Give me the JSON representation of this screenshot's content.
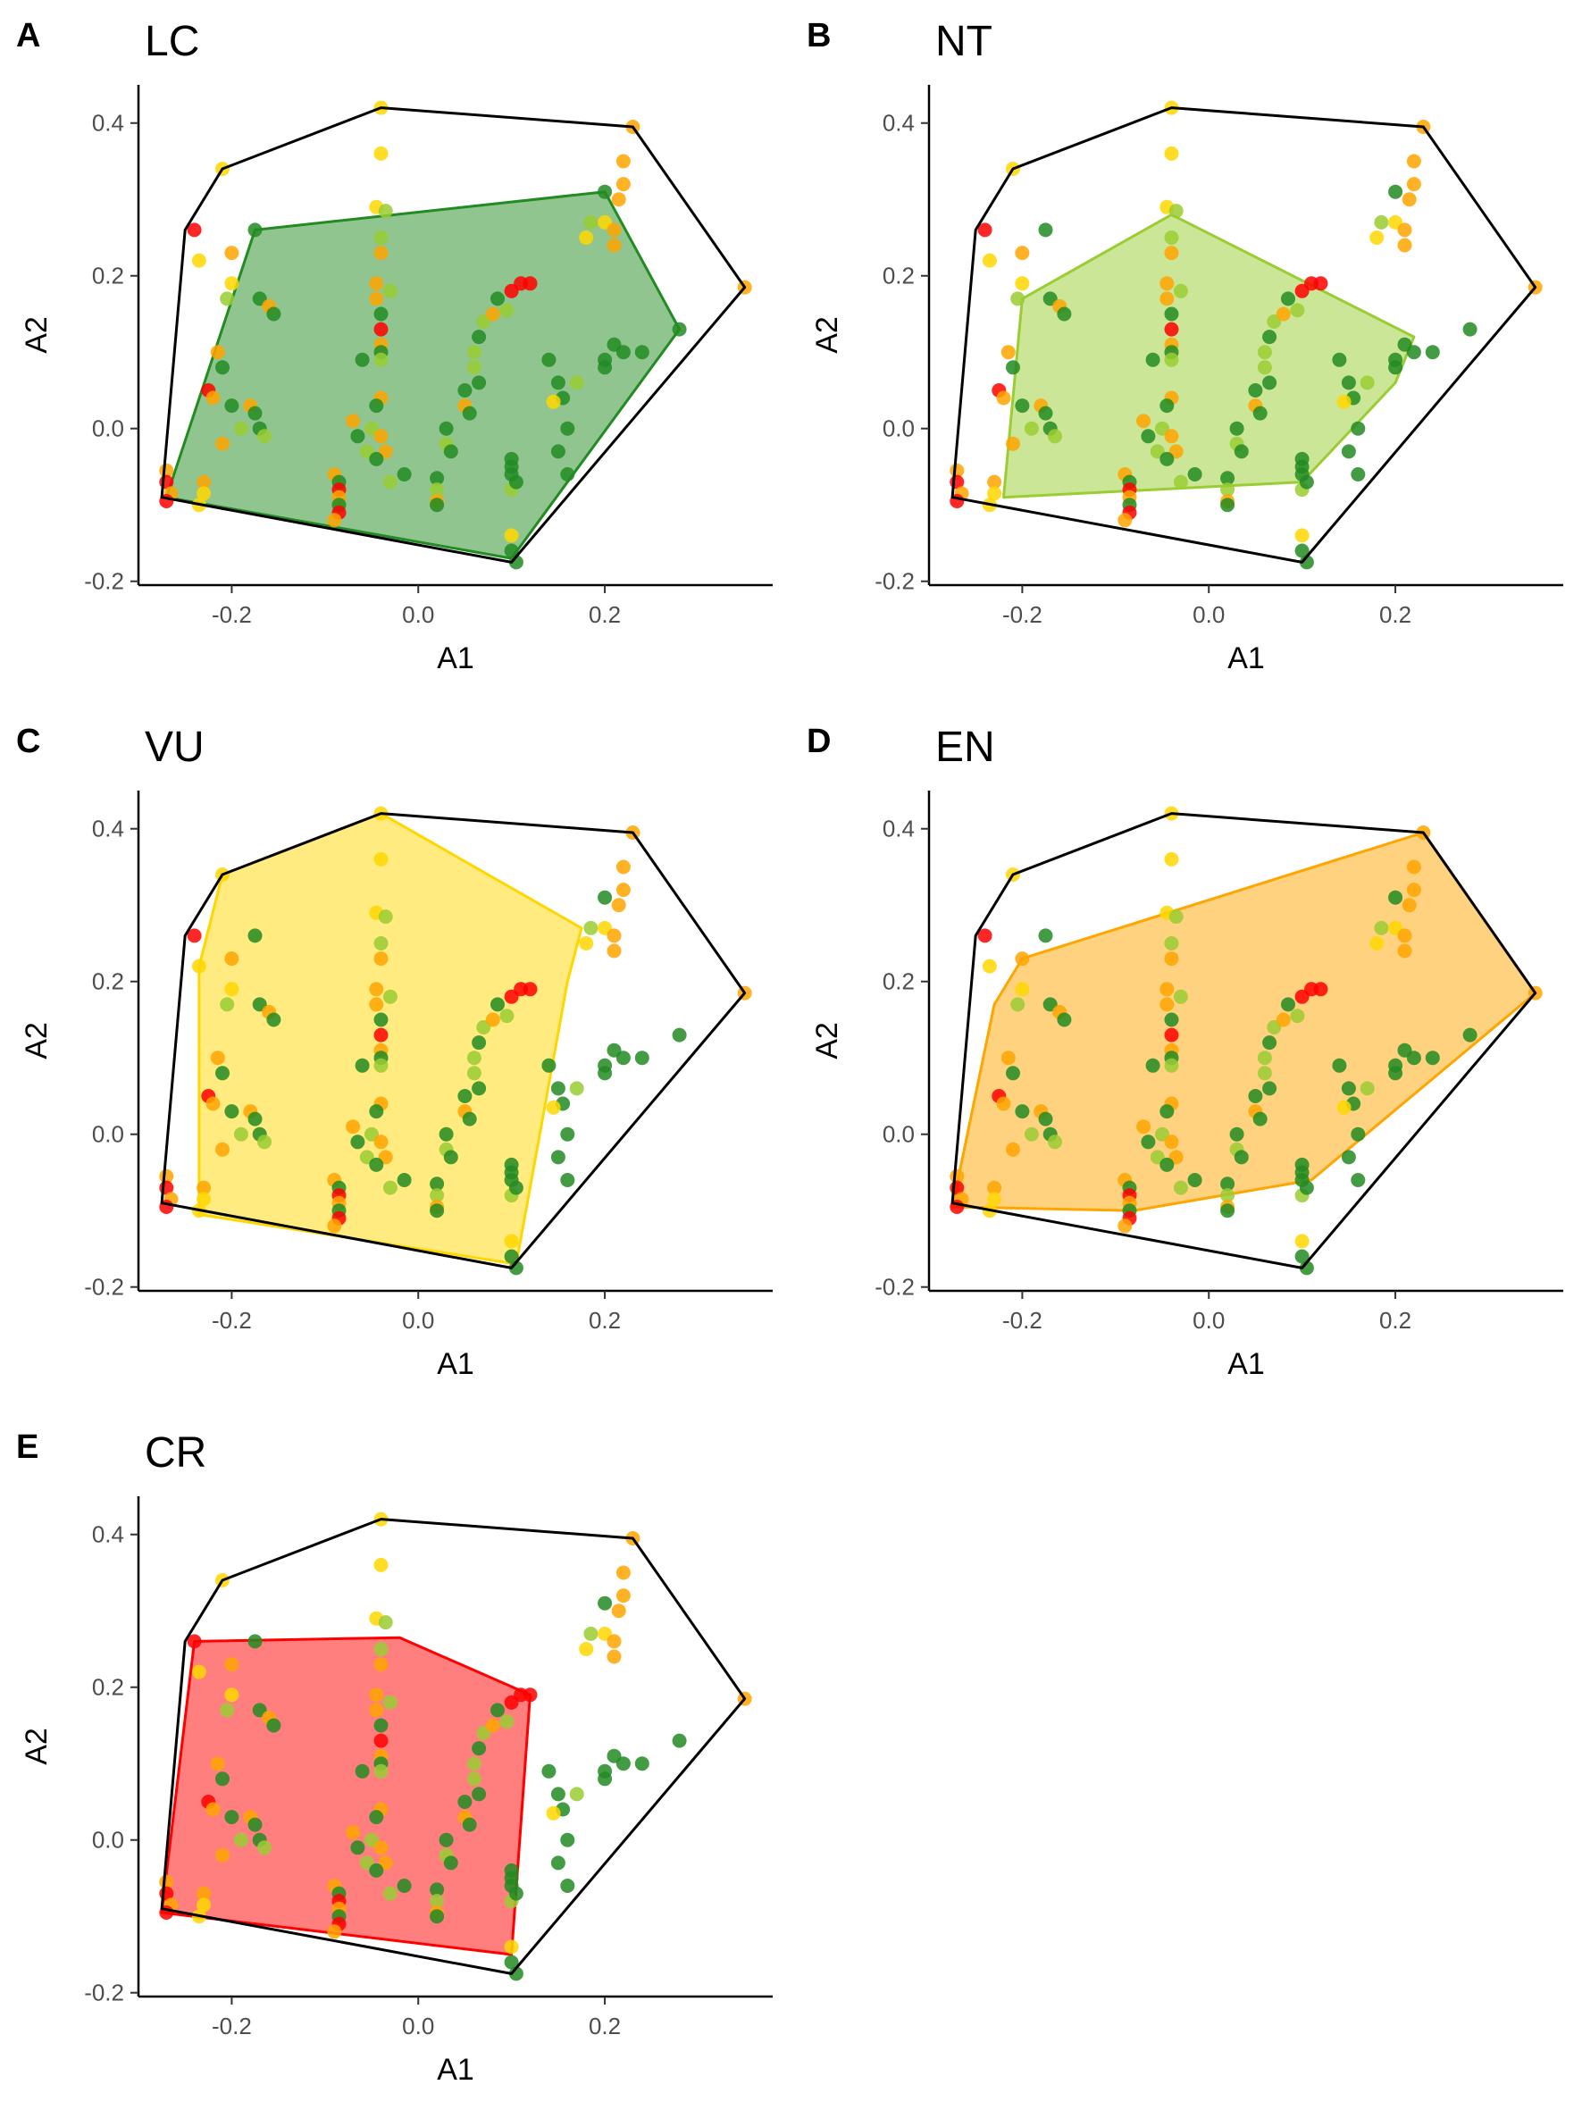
{
  "chart_data": [
    {
      "type": "scatter",
      "panel_letter": "A",
      "title": "LC",
      "xlabel": "A1",
      "ylabel": "A2",
      "xticks": [
        -0.2,
        0.0,
        0.2
      ],
      "xtick_labels": [
        "-0.2",
        "0.0",
        "0.2"
      ],
      "yticks": [
        -0.2,
        0.0,
        0.2,
        0.4
      ],
      "ytick_labels": [
        "-0.2",
        "0.0",
        "0.2",
        "0.4"
      ],
      "xlim": [
        -0.3,
        0.38
      ],
      "ylim": [
        -0.205,
        0.45
      ],
      "highlight_color": "#228B22",
      "highlight_hull": [
        [
          -0.27,
          -0.09
        ],
        [
          -0.175,
          0.26
        ],
        [
          0.2,
          0.31
        ],
        [
          0.28,
          0.13
        ],
        [
          0.1,
          -0.17
        ]
      ]
    },
    {
      "type": "scatter",
      "panel_letter": "B",
      "title": "NT",
      "xlabel": "A1",
      "ylabel": "A2",
      "xticks": [
        -0.2,
        0.0,
        0.2
      ],
      "xtick_labels": [
        "-0.2",
        "0.0",
        "0.2"
      ],
      "yticks": [
        -0.2,
        0.0,
        0.2,
        0.4
      ],
      "ytick_labels": [
        "-0.2",
        "0.0",
        "0.2",
        "0.4"
      ],
      "xlim": [
        -0.3,
        0.38
      ],
      "ylim": [
        -0.205,
        0.45
      ],
      "highlight_color": "#9ACD32",
      "highlight_hull": [
        [
          -0.22,
          -0.09
        ],
        [
          -0.2,
          0.17
        ],
        [
          -0.04,
          0.28
        ],
        [
          0.22,
          0.12
        ],
        [
          0.2,
          0.06
        ],
        [
          0.1,
          -0.07
        ]
      ]
    },
    {
      "type": "scatter",
      "panel_letter": "C",
      "title": "VU",
      "xlabel": "A1",
      "ylabel": "A2",
      "xticks": [
        -0.2,
        0.0,
        0.2
      ],
      "xtick_labels": [
        "-0.2",
        "0.0",
        "0.2"
      ],
      "yticks": [
        -0.2,
        0.0,
        0.2,
        0.4
      ],
      "ytick_labels": [
        "-0.2",
        "0.0",
        "0.2",
        "0.4"
      ],
      "xlim": [
        -0.3,
        0.38
      ],
      "ylim": [
        -0.205,
        0.45
      ],
      "highlight_color": "#FFD700",
      "highlight_hull": [
        [
          -0.235,
          -0.105
        ],
        [
          -0.235,
          0.22
        ],
        [
          -0.21,
          0.34
        ],
        [
          -0.04,
          0.42
        ],
        [
          0.175,
          0.27
        ],
        [
          0.16,
          0.2
        ],
        [
          0.105,
          -0.17
        ]
      ]
    },
    {
      "type": "scatter",
      "panel_letter": "D",
      "title": "EN",
      "xlabel": "A1",
      "ylabel": "A2",
      "xticks": [
        -0.2,
        0.0,
        0.2
      ],
      "xtick_labels": [
        "-0.2",
        "0.0",
        "0.2"
      ],
      "yticks": [
        -0.2,
        0.0,
        0.2,
        0.4
      ],
      "ytick_labels": [
        "-0.2",
        "0.0",
        "0.2",
        "0.4"
      ],
      "xlim": [
        -0.3,
        0.38
      ],
      "ylim": [
        -0.205,
        0.45
      ],
      "highlight_color": "#FFA500",
      "highlight_hull": [
        [
          -0.275,
          -0.095
        ],
        [
          -0.23,
          0.17
        ],
        [
          -0.2,
          0.23
        ],
        [
          0.23,
          0.395
        ],
        [
          0.35,
          0.185
        ],
        [
          0.11,
          -0.06
        ],
        [
          -0.08,
          -0.1
        ]
      ]
    },
    {
      "type": "scatter",
      "panel_letter": "E",
      "title": "CR",
      "xlabel": "A1",
      "ylabel": "A2",
      "xticks": [
        -0.2,
        0.0,
        0.2
      ],
      "xtick_labels": [
        "-0.2",
        "0.0",
        "0.2"
      ],
      "yticks": [
        -0.2,
        0.0,
        0.2,
        0.4
      ],
      "ytick_labels": [
        "-0.2",
        "0.0",
        "0.2",
        "0.4"
      ],
      "xlim": [
        -0.3,
        0.38
      ],
      "ylim": [
        -0.205,
        0.45
      ],
      "highlight_color": "#FF0000",
      "highlight_hull": [
        [
          -0.275,
          -0.095
        ],
        [
          -0.24,
          0.26
        ],
        [
          -0.02,
          0.265
        ],
        [
          0.12,
          0.19
        ],
        [
          0.1,
          -0.15
        ]
      ]
    }
  ],
  "overall_hull": [
    [
      -0.275,
      -0.09
    ],
    [
      -0.25,
      0.26
    ],
    [
      -0.21,
      0.34
    ],
    [
      -0.04,
      0.42
    ],
    [
      0.23,
      0.395
    ],
    [
      0.35,
      0.185
    ],
    [
      0.1,
      -0.175
    ]
  ],
  "category_colors": {
    "LC": "#228B22",
    "NT": "#9ACD32",
    "VU": "#FFD700",
    "EN": "#FFA500",
    "CR": "#FF0000"
  },
  "points": [
    {
      "x": -0.04,
      "y": 0.42,
      "c": "VU"
    },
    {
      "x": -0.04,
      "y": 0.36,
      "c": "VU"
    },
    {
      "x": -0.21,
      "y": 0.34,
      "c": "VU"
    },
    {
      "x": 0.23,
      "y": 0.395,
      "c": "EN"
    },
    {
      "x": 0.35,
      "y": 0.185,
      "c": "EN"
    },
    {
      "x": -0.24,
      "y": 0.26,
      "c": "CR"
    },
    {
      "x": -0.235,
      "y": 0.22,
      "c": "VU"
    },
    {
      "x": -0.2,
      "y": 0.23,
      "c": "EN"
    },
    {
      "x": -0.175,
      "y": 0.26,
      "c": "LC"
    },
    {
      "x": -0.2,
      "y": 0.19,
      "c": "VU"
    },
    {
      "x": -0.205,
      "y": 0.17,
      "c": "NT"
    },
    {
      "x": -0.17,
      "y": 0.17,
      "c": "LC"
    },
    {
      "x": -0.16,
      "y": 0.16,
      "c": "EN"
    },
    {
      "x": -0.155,
      "y": 0.15,
      "c": "LC"
    },
    {
      "x": -0.215,
      "y": 0.1,
      "c": "EN"
    },
    {
      "x": -0.21,
      "y": 0.08,
      "c": "LC"
    },
    {
      "x": -0.225,
      "y": 0.05,
      "c": "CR"
    },
    {
      "x": -0.22,
      "y": 0.04,
      "c": "EN"
    },
    {
      "x": -0.2,
      "y": 0.03,
      "c": "LC"
    },
    {
      "x": -0.19,
      "y": 0.0,
      "c": "NT"
    },
    {
      "x": -0.21,
      "y": -0.02,
      "c": "EN"
    },
    {
      "x": -0.18,
      "y": 0.03,
      "c": "EN"
    },
    {
      "x": -0.175,
      "y": 0.02,
      "c": "LC"
    },
    {
      "x": -0.17,
      "y": 0.0,
      "c": "LC"
    },
    {
      "x": -0.165,
      "y": -0.01,
      "c": "NT"
    },
    {
      "x": -0.27,
      "y": -0.055,
      "c": "EN"
    },
    {
      "x": -0.27,
      "y": -0.07,
      "c": "CR"
    },
    {
      "x": -0.265,
      "y": -0.085,
      "c": "EN"
    },
    {
      "x": -0.27,
      "y": -0.095,
      "c": "CR"
    },
    {
      "x": -0.23,
      "y": -0.07,
      "c": "EN"
    },
    {
      "x": -0.23,
      "y": -0.085,
      "c": "VU"
    },
    {
      "x": -0.235,
      "y": -0.1,
      "c": "VU"
    },
    {
      "x": -0.045,
      "y": 0.29,
      "c": "VU"
    },
    {
      "x": -0.035,
      "y": 0.285,
      "c": "NT"
    },
    {
      "x": -0.04,
      "y": 0.25,
      "c": "NT"
    },
    {
      "x": -0.04,
      "y": 0.23,
      "c": "EN"
    },
    {
      "x": -0.045,
      "y": 0.19,
      "c": "EN"
    },
    {
      "x": -0.03,
      "y": 0.18,
      "c": "NT"
    },
    {
      "x": -0.045,
      "y": 0.17,
      "c": "EN"
    },
    {
      "x": -0.04,
      "y": 0.15,
      "c": "LC"
    },
    {
      "x": -0.04,
      "y": 0.13,
      "c": "CR"
    },
    {
      "x": -0.04,
      "y": 0.11,
      "c": "EN"
    },
    {
      "x": -0.04,
      "y": 0.1,
      "c": "LC"
    },
    {
      "x": -0.04,
      "y": 0.09,
      "c": "NT"
    },
    {
      "x": -0.04,
      "y": 0.04,
      "c": "EN"
    },
    {
      "x": -0.045,
      "y": 0.03,
      "c": "LC"
    },
    {
      "x": -0.05,
      "y": 0.0,
      "c": "NT"
    },
    {
      "x": -0.04,
      "y": -0.01,
      "c": "EN"
    },
    {
      "x": -0.06,
      "y": 0.09,
      "c": "LC"
    },
    {
      "x": -0.07,
      "y": 0.01,
      "c": "EN"
    },
    {
      "x": -0.065,
      "y": -0.01,
      "c": "LC"
    },
    {
      "x": -0.055,
      "y": -0.03,
      "c": "NT"
    },
    {
      "x": -0.035,
      "y": -0.03,
      "c": "EN"
    },
    {
      "x": -0.045,
      "y": -0.04,
      "c": "LC"
    },
    {
      "x": -0.03,
      "y": -0.07,
      "c": "NT"
    },
    {
      "x": -0.09,
      "y": -0.06,
      "c": "EN"
    },
    {
      "x": -0.085,
      "y": -0.07,
      "c": "LC"
    },
    {
      "x": -0.085,
      "y": -0.08,
      "c": "CR"
    },
    {
      "x": -0.085,
      "y": -0.09,
      "c": "EN"
    },
    {
      "x": -0.085,
      "y": -0.1,
      "c": "LC"
    },
    {
      "x": -0.085,
      "y": -0.11,
      "c": "CR"
    },
    {
      "x": -0.09,
      "y": -0.12,
      "c": "EN"
    },
    {
      "x": -0.015,
      "y": -0.06,
      "c": "LC"
    },
    {
      "x": 0.02,
      "y": -0.065,
      "c": "LC"
    },
    {
      "x": 0.02,
      "y": -0.08,
      "c": "NT"
    },
    {
      "x": 0.02,
      "y": -0.095,
      "c": "EN"
    },
    {
      "x": 0.02,
      "y": -0.1,
      "c": "LC"
    },
    {
      "x": 0.03,
      "y": 0.0,
      "c": "LC"
    },
    {
      "x": 0.03,
      "y": -0.02,
      "c": "NT"
    },
    {
      "x": 0.035,
      "y": -0.03,
      "c": "LC"
    },
    {
      "x": 0.05,
      "y": 0.05,
      "c": "LC"
    },
    {
      "x": 0.05,
      "y": 0.03,
      "c": "EN"
    },
    {
      "x": 0.055,
      "y": 0.02,
      "c": "LC"
    },
    {
      "x": 0.06,
      "y": 0.1,
      "c": "NT"
    },
    {
      "x": 0.065,
      "y": 0.12,
      "c": "LC"
    },
    {
      "x": 0.07,
      "y": 0.14,
      "c": "NT"
    },
    {
      "x": 0.08,
      "y": 0.15,
      "c": "EN"
    },
    {
      "x": 0.085,
      "y": 0.17,
      "c": "LC"
    },
    {
      "x": 0.1,
      "y": 0.18,
      "c": "CR"
    },
    {
      "x": 0.11,
      "y": 0.19,
      "c": "CR"
    },
    {
      "x": 0.12,
      "y": 0.19,
      "c": "CR"
    },
    {
      "x": 0.095,
      "y": 0.155,
      "c": "NT"
    },
    {
      "x": 0.06,
      "y": 0.08,
      "c": "NT"
    },
    {
      "x": 0.065,
      "y": 0.06,
      "c": "LC"
    },
    {
      "x": 0.1,
      "y": -0.04,
      "c": "LC"
    },
    {
      "x": 0.1,
      "y": -0.06,
      "c": "LC"
    },
    {
      "x": 0.1,
      "y": -0.08,
      "c": "NT"
    },
    {
      "x": 0.1,
      "y": -0.05,
      "c": "LC"
    },
    {
      "x": 0.105,
      "y": -0.07,
      "c": "LC"
    },
    {
      "x": 0.1,
      "y": -0.14,
      "c": "VU"
    },
    {
      "x": 0.1,
      "y": -0.16,
      "c": "LC"
    },
    {
      "x": 0.105,
      "y": -0.175,
      "c": "LC"
    },
    {
      "x": 0.14,
      "y": 0.09,
      "c": "LC"
    },
    {
      "x": 0.15,
      "y": 0.06,
      "c": "LC"
    },
    {
      "x": 0.155,
      "y": 0.04,
      "c": "LC"
    },
    {
      "x": 0.16,
      "y": 0.0,
      "c": "LC"
    },
    {
      "x": 0.15,
      "y": -0.03,
      "c": "LC"
    },
    {
      "x": 0.16,
      "y": -0.06,
      "c": "LC"
    },
    {
      "x": 0.17,
      "y": 0.06,
      "c": "NT"
    },
    {
      "x": 0.145,
      "y": 0.035,
      "c": "VU"
    },
    {
      "x": 0.2,
      "y": 0.09,
      "c": "LC"
    },
    {
      "x": 0.21,
      "y": 0.11,
      "c": "LC"
    },
    {
      "x": 0.22,
      "y": 0.1,
      "c": "LC"
    },
    {
      "x": 0.2,
      "y": 0.08,
      "c": "LC"
    },
    {
      "x": 0.24,
      "y": 0.1,
      "c": "LC"
    },
    {
      "x": 0.28,
      "y": 0.13,
      "c": "LC"
    },
    {
      "x": 0.18,
      "y": 0.25,
      "c": "VU"
    },
    {
      "x": 0.185,
      "y": 0.27,
      "c": "NT"
    },
    {
      "x": 0.2,
      "y": 0.27,
      "c": "VU"
    },
    {
      "x": 0.21,
      "y": 0.26,
      "c": "EN"
    },
    {
      "x": 0.215,
      "y": 0.3,
      "c": "EN"
    },
    {
      "x": 0.22,
      "y": 0.32,
      "c": "EN"
    },
    {
      "x": 0.22,
      "y": 0.35,
      "c": "EN"
    },
    {
      "x": 0.21,
      "y": 0.24,
      "c": "EN"
    },
    {
      "x": 0.2,
      "y": 0.31,
      "c": "LC"
    }
  ]
}
